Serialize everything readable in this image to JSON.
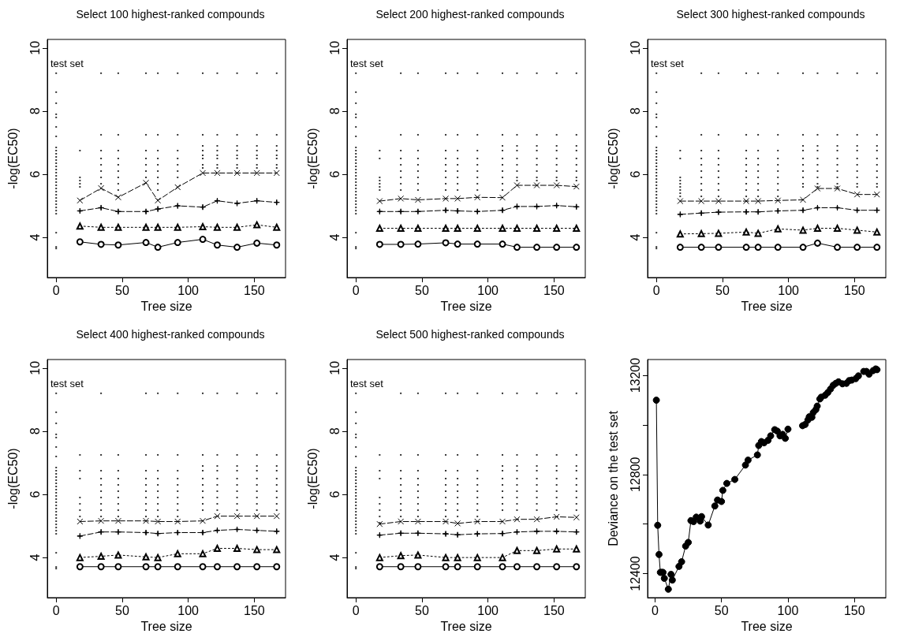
{
  "chart_data": [
    {
      "type": "line",
      "title": "Select 100 highest-ranked compounds",
      "xlabel": "Tree size",
      "ylabel": "-log(EC50)",
      "xlim": [
        -6.7,
        173.7
      ],
      "xticks": [
        0,
        50,
        100,
        150
      ],
      "ylim": [
        2.73,
        10.27
      ],
      "yticks": [
        4,
        6,
        8,
        10
      ],
      "annotations": [
        "test set"
      ],
      "x": [
        18,
        34,
        47,
        68,
        77,
        92,
        111,
        122,
        137,
        152,
        167
      ],
      "series": [
        {
          "color": "#000000",
          "marker": "circle",
          "line_style": "solid",
          "values": [
            3.86,
            3.78,
            3.76,
            3.84,
            3.69,
            3.84,
            3.94,
            3.76,
            3.69,
            3.82,
            3.76
          ]
        },
        {
          "color": "#000000",
          "marker": "triangle",
          "line_style": "dotted",
          "values": [
            4.36,
            4.32,
            4.32,
            4.32,
            4.32,
            4.32,
            4.34,
            4.32,
            4.32,
            4.4,
            4.32
          ]
        },
        {
          "color": "#000000",
          "marker": "star",
          "line_style": "dashed",
          "values": [
            4.84,
            4.94,
            4.82,
            4.82,
            4.9,
            5.0,
            4.96,
            5.16,
            5.08,
            5.16,
            5.11
          ]
        },
        {
          "color": "#000000",
          "marker": "cross",
          "line_style": "dashed",
          "values": [
            5.17,
            5.56,
            5.27,
            5.73,
            5.17,
            5.59,
            6.04,
            6.04,
            6.04,
            6.04,
            6.04
          ]
        },
        {
          "type": "scatter",
          "color": "#000000",
          "marker": "square",
          "x": [
            0,
            0,
            0,
            0,
            0,
            0,
            0,
            0,
            0,
            0,
            0,
            0,
            0,
            0,
            0,
            0,
            0,
            0,
            0,
            0,
            0,
            0,
            0,
            0,
            0,
            0,
            0,
            0,
            0,
            0,
            0,
            0
          ],
          "values": [
            3.65,
            3.7,
            4.15,
            4.75,
            4.85,
            4.95,
            5.05,
            5.15,
            5.25,
            5.35,
            5.45,
            5.55,
            5.65,
            5.75,
            5.85,
            5.95,
            6.05,
            6.15,
            6.25,
            6.35,
            6.45,
            6.55,
            6.65,
            6.75,
            6.85,
            7.2,
            7.5,
            7.8,
            7.9,
            8.25,
            8.6,
            9.2
          ]
        },
        {
          "type": "scatter",
          "color": "#000000",
          "marker": "square",
          "x": [
            18,
            18,
            18,
            18,
            18,
            34,
            34,
            34,
            34,
            34,
            34,
            34,
            34,
            47,
            47,
            47,
            47,
            47,
            47,
            47,
            47,
            47,
            68,
            68,
            68,
            68,
            68,
            68,
            68,
            77,
            77,
            77,
            77,
            77,
            77,
            77,
            77,
            77,
            92,
            92,
            92,
            92,
            92,
            92,
            92,
            111,
            111,
            111,
            111,
            111,
            111,
            111,
            111,
            122,
            122,
            122,
            122,
            122,
            122,
            122,
            122,
            137,
            137,
            137,
            137,
            137,
            137,
            137,
            137,
            152,
            152,
            152,
            152,
            152,
            152,
            152,
            152,
            167,
            167,
            167,
            167,
            167,
            167,
            167,
            167
          ],
          "values": [
            6.75,
            5.9,
            5.8,
            5.7,
            5.6,
            9.2,
            7.25,
            6.75,
            6.5,
            6.3,
            6.1,
            5.9,
            5.7,
            9.2,
            7.25,
            6.75,
            6.5,
            6.3,
            6.1,
            5.9,
            5.7,
            5.5,
            9.2,
            7.25,
            6.75,
            6.5,
            6.3,
            6.1,
            5.9,
            9.2,
            7.25,
            6.75,
            6.5,
            6.3,
            6.1,
            5.9,
            5.7,
            5.5,
            9.2,
            7.25,
            6.75,
            6.5,
            6.3,
            6.1,
            5.9,
            9.2,
            7.25,
            6.9,
            6.75,
            6.6,
            6.5,
            6.3,
            6.2,
            9.2,
            7.25,
            6.9,
            6.75,
            6.6,
            6.5,
            6.3,
            6.2,
            9.2,
            7.25,
            6.9,
            6.75,
            6.6,
            6.5,
            6.3,
            6.2,
            9.2,
            7.25,
            6.9,
            6.75,
            6.6,
            6.5,
            6.3,
            6.2,
            9.2,
            7.25,
            6.9,
            6.75,
            6.6,
            6.5,
            6.3,
            6.2
          ]
        }
      ]
    },
    {
      "type": "line",
      "title": "Select 200 highest-ranked compounds",
      "xlabel": "Tree size",
      "ylabel": "-log(EC50)",
      "xlim": [
        -6.7,
        173.7
      ],
      "xticks": [
        0,
        50,
        100,
        150
      ],
      "ylim": [
        2.73,
        10.27
      ],
      "yticks": [
        4,
        6,
        8,
        10
      ],
      "annotations": [
        "test set"
      ],
      "x": [
        18,
        34,
        47,
        68,
        77,
        92,
        111,
        122,
        137,
        152,
        167
      ],
      "series": [
        {
          "color": "#000000",
          "marker": "circle",
          "line_style": "solid",
          "values": [
            3.78,
            3.78,
            3.79,
            3.83,
            3.79,
            3.79,
            3.79,
            3.69,
            3.69,
            3.69,
            3.69
          ]
        },
        {
          "color": "#000000",
          "marker": "triangle",
          "line_style": "dotted",
          "values": [
            4.29,
            4.29,
            4.29,
            4.29,
            4.29,
            4.29,
            4.29,
            4.29,
            4.29,
            4.29,
            4.29
          ]
        },
        {
          "color": "#000000",
          "marker": "star",
          "line_style": "dashed",
          "values": [
            4.82,
            4.82,
            4.82,
            4.86,
            4.84,
            4.82,
            4.86,
            4.98,
            4.98,
            5.01,
            4.97
          ]
        },
        {
          "color": "#000000",
          "marker": "cross",
          "line_style": "dashed",
          "values": [
            5.15,
            5.23,
            5.19,
            5.23,
            5.23,
            5.27,
            5.26,
            5.65,
            5.65,
            5.65,
            5.61
          ]
        },
        {
          "type": "scatter",
          "color": "#000000",
          "marker": "square",
          "x": [
            0,
            0,
            0,
            0,
            0,
            0,
            0,
            0,
            0,
            0,
            0,
            0,
            0,
            0,
            0,
            0,
            0,
            0,
            0,
            0,
            0,
            0,
            0,
            0,
            0,
            0,
            0,
            0,
            0,
            0,
            0,
            0
          ],
          "values": [
            3.65,
            3.7,
            4.15,
            4.75,
            4.85,
            4.95,
            5.05,
            5.15,
            5.25,
            5.35,
            5.45,
            5.55,
            5.65,
            5.75,
            5.85,
            5.95,
            6.05,
            6.15,
            6.25,
            6.35,
            6.45,
            6.55,
            6.65,
            6.75,
            6.85,
            7.2,
            7.5,
            7.8,
            7.9,
            8.25,
            8.6,
            9.2
          ]
        },
        {
          "type": "scatter",
          "color": "#000000",
          "marker": "square",
          "x": [
            18,
            18,
            18,
            18,
            18,
            18,
            18,
            34,
            34,
            34,
            34,
            34,
            34,
            34,
            34,
            34,
            47,
            47,
            47,
            47,
            47,
            47,
            47,
            47,
            47,
            68,
            68,
            68,
            68,
            68,
            68,
            68,
            68,
            68,
            77,
            77,
            77,
            77,
            77,
            77,
            77,
            77,
            77,
            92,
            92,
            92,
            92,
            92,
            92,
            92,
            92,
            92,
            111,
            111,
            111,
            111,
            111,
            111,
            111,
            111,
            111,
            111,
            122,
            122,
            122,
            122,
            122,
            122,
            122,
            122,
            122,
            137,
            137,
            137,
            137,
            137,
            137,
            137,
            137,
            137,
            152,
            152,
            152,
            152,
            152,
            152,
            152,
            152,
            152,
            167,
            167,
            167,
            167,
            167,
            167,
            167,
            167,
            167
          ],
          "values": [
            6.75,
            6.5,
            5.9,
            5.8,
            5.7,
            5.6,
            5.5,
            9.2,
            7.25,
            6.75,
            6.5,
            6.3,
            6.1,
            5.9,
            5.7,
            5.5,
            9.2,
            7.25,
            6.75,
            6.5,
            6.3,
            6.1,
            5.9,
            5.7,
            5.5,
            9.2,
            7.25,
            6.75,
            6.5,
            6.3,
            6.1,
            5.9,
            5.7,
            5.5,
            9.2,
            7.25,
            6.75,
            6.5,
            6.3,
            6.1,
            5.9,
            5.7,
            5.5,
            9.2,
            7.25,
            6.75,
            6.5,
            6.3,
            6.1,
            5.9,
            5.7,
            5.5,
            9.2,
            7.25,
            6.9,
            6.75,
            6.5,
            6.3,
            6.1,
            5.9,
            5.7,
            5.5,
            9.2,
            7.25,
            6.9,
            6.75,
            6.5,
            6.3,
            6.1,
            5.9,
            5.8,
            9.2,
            7.25,
            6.9,
            6.75,
            6.5,
            6.3,
            6.1,
            5.9,
            5.8,
            9.2,
            7.25,
            6.9,
            6.75,
            6.5,
            6.3,
            6.1,
            5.9,
            5.8,
            9.2,
            7.25,
            6.9,
            6.75,
            6.5,
            6.3,
            6.1,
            5.9,
            5.8
          ]
        }
      ]
    },
    {
      "type": "line",
      "title": "Select 300 highest-ranked compounds",
      "xlabel": "Tree size",
      "ylabel": "-log(EC50)",
      "xlim": [
        -6.7,
        173.7
      ],
      "xticks": [
        0,
        50,
        100,
        150
      ],
      "ylim": [
        2.73,
        10.27
      ],
      "yticks": [
        4,
        6,
        8,
        10
      ],
      "annotations": [
        "test set"
      ],
      "x": [
        18,
        34,
        47,
        68,
        77,
        92,
        111,
        122,
        137,
        152,
        167
      ],
      "series": [
        {
          "color": "#000000",
          "marker": "circle",
          "line_style": "solid",
          "values": [
            3.69,
            3.69,
            3.69,
            3.69,
            3.69,
            3.69,
            3.69,
            3.82,
            3.69,
            3.69,
            3.69
          ]
        },
        {
          "color": "#000000",
          "marker": "triangle",
          "line_style": "dotted",
          "values": [
            4.11,
            4.12,
            4.13,
            4.17,
            4.13,
            4.27,
            4.23,
            4.29,
            4.29,
            4.23,
            4.17
          ]
        },
        {
          "color": "#000000",
          "marker": "star",
          "line_style": "dashed",
          "values": [
            4.73,
            4.77,
            4.8,
            4.81,
            4.81,
            4.84,
            4.86,
            4.94,
            4.94,
            4.86,
            4.86
          ]
        },
        {
          "color": "#000000",
          "marker": "cross",
          "line_style": "dashed",
          "values": [
            5.15,
            5.15,
            5.15,
            5.15,
            5.15,
            5.17,
            5.19,
            5.55,
            5.55,
            5.36,
            5.36
          ]
        },
        {
          "type": "scatter",
          "color": "#000000",
          "marker": "square",
          "x": [
            0,
            0,
            0,
            0,
            0,
            0,
            0,
            0,
            0,
            0,
            0,
            0,
            0,
            0,
            0,
            0,
            0,
            0,
            0,
            0,
            0,
            0,
            0,
            0,
            0,
            0,
            0,
            0,
            0,
            0,
            0,
            0
          ],
          "values": [
            3.65,
            3.7,
            4.15,
            4.75,
            4.85,
            4.95,
            5.05,
            5.15,
            5.25,
            5.35,
            5.45,
            5.55,
            5.65,
            5.75,
            5.85,
            5.95,
            6.05,
            6.15,
            6.25,
            6.35,
            6.45,
            6.55,
            6.65,
            6.75,
            6.85,
            7.2,
            7.5,
            7.8,
            7.9,
            8.25,
            8.6,
            9.2
          ]
        },
        {
          "type": "scatter",
          "color": "#000000",
          "marker": "square",
          "x": [
            18,
            18,
            18,
            18,
            18,
            18,
            18,
            18,
            18,
            34,
            34,
            34,
            34,
            34,
            34,
            34,
            34,
            34,
            34,
            47,
            47,
            47,
            47,
            47,
            47,
            47,
            47,
            47,
            47,
            68,
            68,
            68,
            68,
            68,
            68,
            68,
            68,
            68,
            68,
            77,
            77,
            77,
            77,
            77,
            77,
            77,
            77,
            77,
            77,
            92,
            92,
            92,
            92,
            92,
            92,
            92,
            92,
            92,
            92,
            111,
            111,
            111,
            111,
            111,
            111,
            111,
            111,
            111,
            111,
            122,
            122,
            122,
            122,
            122,
            122,
            122,
            122,
            122,
            122,
            137,
            137,
            137,
            137,
            137,
            137,
            137,
            137,
            137,
            137,
            152,
            152,
            152,
            152,
            152,
            152,
            152,
            152,
            152,
            152,
            167,
            167,
            167,
            167,
            167,
            167,
            167,
            167,
            167,
            167
          ],
          "values": [
            6.75,
            6.5,
            5.9,
            5.8,
            5.7,
            5.6,
            5.5,
            5.4,
            5.3,
            9.2,
            7.25,
            6.75,
            6.5,
            6.3,
            6.1,
            5.9,
            5.7,
            5.5,
            5.3,
            9.2,
            7.25,
            6.75,
            6.5,
            6.3,
            6.1,
            5.9,
            5.7,
            5.5,
            5.3,
            9.2,
            7.25,
            6.75,
            6.5,
            6.3,
            6.1,
            5.9,
            5.7,
            5.5,
            5.3,
            9.2,
            7.25,
            6.75,
            6.5,
            6.3,
            6.1,
            5.9,
            5.7,
            5.5,
            5.3,
            9.2,
            7.25,
            6.75,
            6.5,
            6.3,
            6.1,
            5.9,
            5.7,
            5.5,
            5.3,
            9.2,
            7.25,
            6.9,
            6.75,
            6.5,
            6.3,
            6.1,
            5.9,
            5.7,
            5.6,
            9.2,
            7.25,
            6.9,
            6.75,
            6.5,
            6.3,
            6.1,
            5.9,
            5.7,
            5.6,
            9.2,
            7.25,
            6.9,
            6.75,
            6.5,
            6.3,
            6.1,
            5.9,
            5.7,
            5.6,
            9.2,
            7.25,
            6.9,
            6.75,
            6.5,
            6.3,
            6.1,
            5.9,
            5.7,
            5.6,
            9.2,
            7.25,
            6.9,
            6.75,
            6.5,
            6.3,
            6.1,
            5.9,
            5.7,
            5.6
          ]
        }
      ]
    },
    {
      "type": "line",
      "title": "Select 400 highest-ranked compounds",
      "xlabel": "Tree size",
      "ylabel": "-log(EC50)",
      "xlim": [
        -6.7,
        173.7
      ],
      "xticks": [
        0,
        50,
        100,
        150
      ],
      "ylim": [
        2.73,
        10.27
      ],
      "yticks": [
        4,
        6,
        8,
        10
      ],
      "annotations": [
        "test set"
      ],
      "x": [
        18,
        34,
        47,
        68,
        77,
        92,
        111,
        122,
        137,
        152,
        167
      ],
      "series": [
        {
          "color": "#000000",
          "marker": "circle",
          "line_style": "solid",
          "values": [
            3.71,
            3.71,
            3.71,
            3.71,
            3.71,
            3.71,
            3.71,
            3.71,
            3.71,
            3.71,
            3.71
          ]
        },
        {
          "color": "#000000",
          "marker": "triangle",
          "line_style": "dotted",
          "values": [
            4.0,
            4.04,
            4.08,
            4.02,
            4.0,
            4.12,
            4.12,
            4.29,
            4.29,
            4.25,
            4.25
          ]
        },
        {
          "color": "#000000",
          "marker": "star",
          "line_style": "dashed",
          "values": [
            4.68,
            4.81,
            4.81,
            4.79,
            4.76,
            4.79,
            4.79,
            4.86,
            4.89,
            4.86,
            4.83
          ]
        },
        {
          "color": "#000000",
          "marker": "cross",
          "line_style": "dashed",
          "values": [
            5.14,
            5.16,
            5.16,
            5.16,
            5.14,
            5.14,
            5.16,
            5.31,
            5.31,
            5.31,
            5.31
          ]
        },
        {
          "type": "scatter",
          "color": "#000000",
          "marker": "square",
          "x": [
            0,
            0,
            0,
            0,
            0,
            0,
            0,
            0,
            0,
            0,
            0,
            0,
            0,
            0,
            0,
            0,
            0,
            0,
            0,
            0,
            0,
            0,
            0,
            0,
            0,
            0,
            0,
            0,
            0,
            0,
            0,
            0
          ],
          "values": [
            3.65,
            3.7,
            4.15,
            4.75,
            4.85,
            4.95,
            5.05,
            5.15,
            5.25,
            5.35,
            5.45,
            5.55,
            5.65,
            5.75,
            5.85,
            5.95,
            6.05,
            6.15,
            6.25,
            6.35,
            6.45,
            6.55,
            6.65,
            6.75,
            6.85,
            7.2,
            7.5,
            7.8,
            7.9,
            8.25,
            8.6,
            9.2
          ]
        },
        {
          "type": "scatter",
          "color": "#000000",
          "marker": "square",
          "x": [
            18,
            18,
            18,
            18,
            18,
            18,
            18,
            34,
            34,
            34,
            34,
            34,
            34,
            34,
            34,
            34,
            34,
            47,
            47,
            47,
            47,
            47,
            47,
            47,
            47,
            47,
            68,
            68,
            68,
            68,
            68,
            68,
            68,
            68,
            68,
            68,
            77,
            77,
            77,
            77,
            77,
            77,
            77,
            77,
            77,
            77,
            92,
            92,
            92,
            92,
            92,
            92,
            92,
            92,
            92,
            92,
            111,
            111,
            111,
            111,
            111,
            111,
            111,
            111,
            111,
            111,
            122,
            122,
            122,
            122,
            122,
            122,
            122,
            122,
            122,
            122,
            137,
            137,
            137,
            137,
            137,
            137,
            137,
            137,
            137,
            137,
            152,
            152,
            152,
            152,
            152,
            152,
            152,
            152,
            152,
            152,
            167,
            167,
            167,
            167,
            167,
            167,
            167,
            167,
            167,
            167
          ],
          "values": [
            7.25,
            6.75,
            6.5,
            5.9,
            5.7,
            5.5,
            5.3,
            9.2,
            7.25,
            6.75,
            6.5,
            6.3,
            6.1,
            5.9,
            5.7,
            5.5,
            5.3,
            7.25,
            6.75,
            6.5,
            6.3,
            6.1,
            5.9,
            5.7,
            5.5,
            5.3,
            9.2,
            7.25,
            6.75,
            6.5,
            6.3,
            6.1,
            5.9,
            5.7,
            5.5,
            5.3,
            9.2,
            7.25,
            6.75,
            6.5,
            6.3,
            6.1,
            5.9,
            5.7,
            5.5,
            5.3,
            9.2,
            7.25,
            6.75,
            6.5,
            6.3,
            6.1,
            5.9,
            5.7,
            5.5,
            5.3,
            9.2,
            7.25,
            6.9,
            6.75,
            6.5,
            6.3,
            6.1,
            5.9,
            5.7,
            5.5,
            9.2,
            7.25,
            6.9,
            6.75,
            6.5,
            6.3,
            6.1,
            5.9,
            5.7,
            5.5,
            9.2,
            7.25,
            6.9,
            6.75,
            6.5,
            6.3,
            6.1,
            5.9,
            5.7,
            5.5,
            9.2,
            7.25,
            6.9,
            6.75,
            6.5,
            6.3,
            6.1,
            5.9,
            5.7,
            5.5,
            9.2,
            7.25,
            6.9,
            6.75,
            6.5,
            6.3,
            6.1,
            5.9,
            5.7,
            5.5
          ]
        }
      ]
    },
    {
      "type": "line",
      "title": "Select 500 highest-ranked compounds",
      "xlabel": "Tree size",
      "ylabel": "-log(EC50)",
      "xlim": [
        -6.7,
        173.7
      ],
      "xticks": [
        0,
        50,
        100,
        150
      ],
      "ylim": [
        2.73,
        10.27
      ],
      "yticks": [
        4,
        6,
        8,
        10
      ],
      "annotations": [
        "test set"
      ],
      "x": [
        18,
        34,
        47,
        68,
        77,
        92,
        111,
        122,
        137,
        152,
        167
      ],
      "series": [
        {
          "color": "#000000",
          "marker": "circle",
          "line_style": "solid",
          "values": [
            3.71,
            3.71,
            3.71,
            3.71,
            3.71,
            3.71,
            3.71,
            3.71,
            3.71,
            3.71,
            3.71
          ]
        },
        {
          "color": "#000000",
          "marker": "triangle",
          "line_style": "dotted",
          "values": [
            4.0,
            4.06,
            4.08,
            4.0,
            4.0,
            4.0,
            4.0,
            4.22,
            4.22,
            4.27,
            4.27
          ]
        },
        {
          "color": "#000000",
          "marker": "star",
          "line_style": "dashed",
          "values": [
            4.71,
            4.77,
            4.77,
            4.75,
            4.72,
            4.75,
            4.76,
            4.81,
            4.83,
            4.83,
            4.81
          ]
        },
        {
          "color": "#000000",
          "marker": "cross",
          "line_style": "dashed",
          "values": [
            5.06,
            5.14,
            5.14,
            5.14,
            5.08,
            5.14,
            5.14,
            5.21,
            5.21,
            5.29,
            5.27
          ]
        },
        {
          "type": "scatter",
          "color": "#000000",
          "marker": "square",
          "x": [
            0,
            0,
            0,
            0,
            0,
            0,
            0,
            0,
            0,
            0,
            0,
            0,
            0,
            0,
            0,
            0,
            0,
            0,
            0,
            0,
            0,
            0,
            0,
            0,
            0,
            0,
            0,
            0,
            0,
            0,
            0,
            0
          ],
          "values": [
            3.65,
            3.7,
            4.15,
            4.75,
            4.85,
            4.95,
            5.05,
            5.15,
            5.25,
            5.35,
            5.45,
            5.55,
            5.65,
            5.75,
            5.85,
            5.95,
            6.05,
            6.15,
            6.25,
            6.35,
            6.45,
            6.55,
            6.65,
            6.75,
            6.85,
            7.2,
            7.5,
            7.8,
            7.9,
            8.25,
            8.6,
            9.2
          ]
        },
        {
          "type": "scatter",
          "color": "#000000",
          "marker": "square",
          "x": [
            18,
            18,
            18,
            18,
            18,
            18,
            18,
            18,
            34,
            34,
            34,
            34,
            34,
            34,
            34,
            34,
            34,
            34,
            47,
            47,
            47,
            47,
            47,
            47,
            47,
            47,
            47,
            47,
            68,
            68,
            68,
            68,
            68,
            68,
            68,
            68,
            68,
            68,
            77,
            77,
            77,
            77,
            77,
            77,
            77,
            77,
            77,
            77,
            92,
            92,
            92,
            92,
            92,
            92,
            92,
            92,
            92,
            92,
            111,
            111,
            111,
            111,
            111,
            111,
            111,
            111,
            111,
            111,
            122,
            122,
            122,
            122,
            122,
            122,
            122,
            122,
            122,
            122,
            137,
            137,
            137,
            137,
            137,
            137,
            137,
            137,
            137,
            137,
            152,
            152,
            152,
            152,
            152,
            152,
            152,
            152,
            152,
            152,
            167,
            167,
            167,
            167,
            167,
            167,
            167,
            167,
            167,
            167
          ],
          "values": [
            7.25,
            6.75,
            6.5,
            5.9,
            5.7,
            5.5,
            5.3,
            5.1,
            9.2,
            7.25,
            6.75,
            6.5,
            6.3,
            6.1,
            5.9,
            5.7,
            5.5,
            5.3,
            9.2,
            7.25,
            6.75,
            6.5,
            6.3,
            6.1,
            5.9,
            5.7,
            5.5,
            5.3,
            9.2,
            7.25,
            6.75,
            6.5,
            6.3,
            6.1,
            5.9,
            5.7,
            5.5,
            5.3,
            9.2,
            7.25,
            6.75,
            6.5,
            6.3,
            6.1,
            5.9,
            5.7,
            5.5,
            5.3,
            9.2,
            7.25,
            6.75,
            6.5,
            6.3,
            6.1,
            5.9,
            5.7,
            5.5,
            5.3,
            9.2,
            7.25,
            6.9,
            6.75,
            6.5,
            6.3,
            6.1,
            5.9,
            5.7,
            5.5,
            9.2,
            7.25,
            6.9,
            6.75,
            6.5,
            6.3,
            6.1,
            5.9,
            5.7,
            5.5,
            9.2,
            7.25,
            6.9,
            6.75,
            6.5,
            6.3,
            6.1,
            5.9,
            5.7,
            5.5,
            9.2,
            7.25,
            6.9,
            6.75,
            6.5,
            6.3,
            6.1,
            5.9,
            5.7,
            5.5,
            9.2,
            7.25,
            6.9,
            6.75,
            6.5,
            6.3,
            6.1,
            5.9,
            5.7,
            5.5
          ]
        }
      ]
    },
    {
      "type": "line",
      "xlabel": "Tree size",
      "ylabel": "Deviance on the test set",
      "xlim": [
        -5.6,
        173.6
      ],
      "xticks": [
        0,
        50,
        100,
        150
      ],
      "ylim": [
        12303,
        13264
      ],
      "yticks": [
        12400,
        {
          "value": 12600,
          "label": null
        },
        12800,
        {
          "value": 13000,
          "label": null
        },
        13200
      ],
      "marker": "circle",
      "line_style": "solid",
      "x": [
        1,
        2,
        3,
        4,
        5,
        6,
        7,
        10,
        12,
        13,
        18,
        20,
        23,
        25,
        27,
        29,
        31,
        34,
        35,
        40,
        45,
        47,
        50,
        51,
        54,
        60,
        68,
        70,
        77,
        78,
        80,
        82,
        85,
        87,
        90,
        92,
        94,
        96,
        98,
        100,
        105,
        111,
        113,
        115,
        116,
        118,
        119,
        121,
        122,
        124,
        125,
        128,
        130,
        132,
        134,
        136,
        138,
        141,
        144,
        146,
        148,
        151,
        153,
        157,
        159,
        161,
        164,
        166,
        167
      ],
      "series": [
        {
          "color": "#000000",
          "values": [
            13100,
            12595,
            12477,
            12405,
            12405,
            12405,
            12381,
            12337,
            12397,
            12374,
            12429,
            12448,
            12511,
            12526,
            12614,
            12610,
            12628,
            12612,
            12630,
            12596,
            12673,
            12697,
            12691,
            12736,
            12764,
            12780,
            12838,
            12858,
            12879,
            12917,
            12933,
            12928,
            12938,
            12956,
            12981,
            12975,
            12956,
            12962,
            12946,
            12983,
            null,
            12997,
            13002,
            13020,
            13033,
            13031,
            13050,
            13062,
            13076,
            13105,
            13112,
            13120,
            13131,
            13145,
            13160,
            13168,
            13174,
            13166,
            13168,
            13179,
            13181,
            13187,
            13198,
            13216,
            13216,
            13205,
            13219,
            13226,
            13223
          ]
        }
      ]
    }
  ]
}
